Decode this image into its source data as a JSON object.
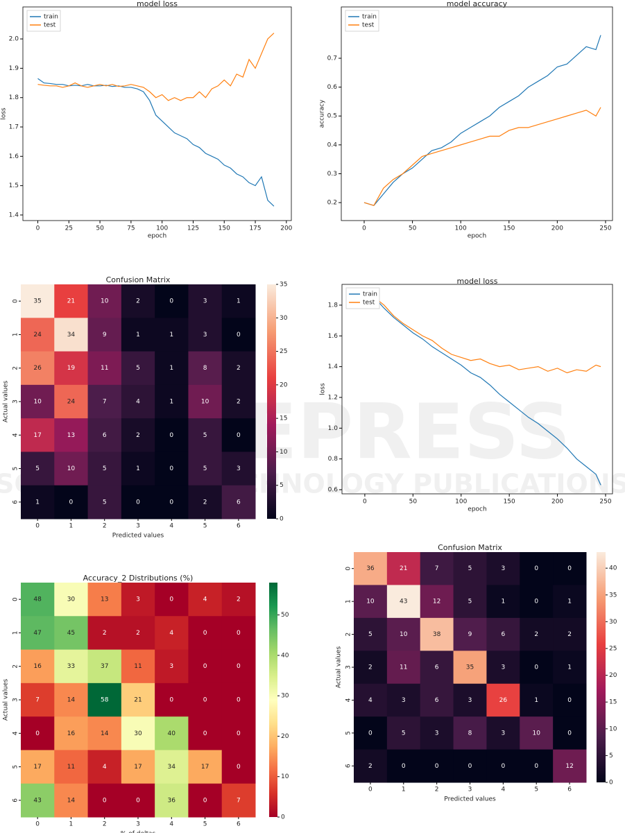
{
  "watermark": {
    "title": "SCITEPRESS",
    "subtitle": "SCIENCE AND TECHNOLOGY PUBLICATIONS"
  },
  "chart_data": [
    {
      "type": "line",
      "title": "model loss",
      "xlabel": "epoch",
      "ylabel": "loss",
      "xlim": [
        -12,
        204
      ],
      "xticks": [
        0,
        25,
        50,
        75,
        100,
        125,
        150,
        175,
        200
      ],
      "ylim": [
        1.381,
        2.109
      ],
      "yticks": [
        1.4,
        1.5,
        1.6,
        1.7,
        1.8,
        1.9,
        {
          "value": 2,
          "label": "2.0"
        }
      ],
      "legend": "upper left",
      "x": [
        0,
        5,
        10,
        15,
        20,
        25,
        30,
        35,
        40,
        45,
        50,
        55,
        60,
        65,
        70,
        75,
        80,
        85,
        90,
        95,
        100,
        105,
        110,
        115,
        120,
        125,
        130,
        135,
        140,
        145,
        150,
        155,
        160,
        165,
        170,
        175,
        180,
        185,
        190
      ],
      "series": [
        {
          "name": "train",
          "color": "#1f77b4",
          "values": [
            1.865,
            1.85,
            1.848,
            1.845,
            1.845,
            1.84,
            1.842,
            1.84,
            1.845,
            1.84,
            1.84,
            1.842,
            1.838,
            1.84,
            1.835,
            1.835,
            1.83,
            1.82,
            1.79,
            1.74,
            1.72,
            1.7,
            1.68,
            1.67,
            1.66,
            1.64,
            1.63,
            1.61,
            1.6,
            1.59,
            1.57,
            1.56,
            1.54,
            1.53,
            1.51,
            1.5,
            1.53,
            1.45,
            1.43
          ]
        },
        {
          "name": "test",
          "color": "#ff7f0e",
          "values": [
            1.845,
            1.842,
            1.84,
            1.84,
            1.835,
            1.84,
            1.85,
            1.84,
            1.835,
            1.84,
            1.845,
            1.84,
            1.845,
            1.838,
            1.84,
            1.845,
            1.84,
            1.835,
            1.82,
            1.8,
            1.81,
            1.79,
            1.8,
            1.79,
            1.8,
            1.8,
            1.82,
            1.8,
            1.83,
            1.84,
            1.86,
            1.84,
            1.88,
            1.87,
            1.93,
            1.9,
            1.95,
            2.0,
            2.02
          ]
        }
      ]
    },
    {
      "type": "line",
      "title": "model accuracy",
      "xlabel": "epoch",
      "ylabel": "accuracy",
      "xlim": [
        -23.7,
        257.2
      ],
      "xticks": [
        0,
        50,
        100,
        150,
        200,
        250
      ],
      "ylim": [
        0.1378,
        0.8778
      ],
      "yticks": [
        0.2,
        0.3,
        0.4,
        0.5,
        0.6,
        0.7
      ],
      "legend": "upper left",
      "x": [
        0,
        10,
        20,
        30,
        40,
        50,
        60,
        70,
        80,
        90,
        100,
        110,
        120,
        130,
        140,
        150,
        160,
        170,
        180,
        190,
        200,
        210,
        220,
        230,
        240,
        245
      ],
      "series": [
        {
          "name": "train",
          "color": "#1f77b4",
          "values": [
            0.2,
            0.19,
            0.23,
            0.27,
            0.3,
            0.32,
            0.35,
            0.38,
            0.39,
            0.41,
            0.44,
            0.46,
            0.48,
            0.5,
            0.53,
            0.55,
            0.57,
            0.6,
            0.62,
            0.64,
            0.67,
            0.68,
            0.71,
            0.74,
            0.73,
            0.78
          ]
        },
        {
          "name": "test",
          "color": "#ff7f0e",
          "values": [
            0.2,
            0.19,
            0.25,
            0.28,
            0.3,
            0.33,
            0.36,
            0.37,
            0.38,
            0.39,
            0.4,
            0.41,
            0.42,
            0.43,
            0.43,
            0.45,
            0.46,
            0.46,
            0.47,
            0.48,
            0.49,
            0.5,
            0.51,
            0.52,
            0.5,
            0.53
          ]
        }
      ]
    },
    {
      "type": "heatmap",
      "title": "Confusion Matrix",
      "xlabel": "Predicted values",
      "ylabel": "Actual values",
      "x_categories": [
        "0",
        "1",
        "2",
        "3",
        "4",
        "5",
        "6"
      ],
      "y_categories": [
        "0",
        "1",
        "2",
        "3",
        "4",
        "5",
        "6"
      ],
      "matrix": [
        [
          35,
          21,
          10,
          2,
          0,
          3,
          1
        ],
        [
          24,
          34,
          9,
          1,
          1,
          3,
          0
        ],
        [
          26,
          19,
          11,
          5,
          1,
          8,
          2
        ],
        [
          10,
          24,
          7,
          4,
          1,
          10,
          2
        ],
        [
          17,
          13,
          6,
          2,
          0,
          5,
          0
        ],
        [
          5,
          10,
          5,
          1,
          0,
          5,
          3
        ],
        [
          1,
          0,
          5,
          0,
          0,
          2,
          6
        ]
      ],
      "clim": [
        0,
        35
      ],
      "cticks": [
        0,
        5,
        10,
        15,
        20,
        25,
        30,
        35
      ],
      "colors": [
        "#03051a",
        "#4c1d4b",
        "#a11a5b",
        "#e83f3f",
        "#f69c73",
        "#faebdd"
      ]
    },
    {
      "type": "line",
      "title": "model loss",
      "xlabel": "epoch",
      "ylabel": "loss",
      "xlim": [
        -23.7,
        257.2
      ],
      "xticks": [
        0,
        50,
        100,
        150,
        200,
        250
      ],
      "ylim": [
        0.573,
        1.935
      ],
      "yticks": [
        0.6,
        0.8,
        {
          "value": 1,
          "label": "1.0"
        },
        1.2,
        1.4,
        1.6,
        1.8
      ],
      "legend": "upper left",
      "x": [
        0,
        10,
        20,
        30,
        40,
        50,
        60,
        70,
        80,
        90,
        100,
        110,
        120,
        130,
        140,
        150,
        160,
        170,
        180,
        190,
        200,
        210,
        220,
        230,
        240,
        245
      ],
      "series": [
        {
          "name": "train",
          "color": "#1f77b4",
          "values": [
            1.9,
            1.85,
            1.78,
            1.72,
            1.67,
            1.62,
            1.58,
            1.53,
            1.49,
            1.45,
            1.41,
            1.36,
            1.33,
            1.28,
            1.22,
            1.17,
            1.12,
            1.07,
            1.03,
            0.98,
            0.93,
            0.87,
            0.8,
            0.75,
            0.7,
            0.63
          ]
        },
        {
          "name": "test",
          "color": "#ff7f0e",
          "values": [
            1.88,
            1.85,
            1.8,
            1.73,
            1.68,
            1.64,
            1.6,
            1.57,
            1.52,
            1.48,
            1.46,
            1.44,
            1.45,
            1.42,
            1.4,
            1.41,
            1.38,
            1.39,
            1.4,
            1.37,
            1.39,
            1.36,
            1.38,
            1.37,
            1.41,
            1.4
          ]
        }
      ]
    },
    {
      "type": "heatmap",
      "title": "Accuracy_2 Distributions (%)",
      "xlabel": "% of deltas",
      "ylabel": "Actual values",
      "x_categories": [
        "0",
        "1",
        "2",
        "3",
        "4",
        "5",
        "6"
      ],
      "y_categories": [
        "0",
        "1",
        "2",
        "3",
        "4",
        "5",
        "6"
      ],
      "matrix": [
        [
          48,
          30,
          13,
          3,
          0,
          4,
          2
        ],
        [
          47,
          45,
          2,
          2,
          4,
          0,
          0
        ],
        [
          16,
          33,
          37,
          11,
          3,
          0,
          0
        ],
        [
          7,
          14,
          58,
          21,
          0,
          0,
          0
        ],
        [
          0,
          16,
          14,
          30,
          40,
          0,
          0
        ],
        [
          17,
          11,
          4,
          17,
          34,
          17,
          0
        ],
        [
          43,
          14,
          0,
          0,
          36,
          0,
          7
        ]
      ],
      "clim": [
        0,
        58
      ],
      "cticks": [
        0,
        10,
        20,
        30,
        40,
        50
      ],
      "colors": [
        "#a50026",
        "#d73027",
        "#f46d43",
        "#fdae61",
        "#fee08b",
        "#ffffbf",
        "#d9ef8b",
        "#a6d96a",
        "#66bd63",
        "#1a9850",
        "#006837"
      ]
    },
    {
      "type": "heatmap",
      "title": "Confusion Matrix",
      "xlabel": "Predicted values",
      "ylabel": "Actual values",
      "x_categories": [
        "0",
        "1",
        "2",
        "3",
        "4",
        "5",
        "6"
      ],
      "y_categories": [
        "0",
        "1",
        "2",
        "3",
        "4",
        "5",
        "6"
      ],
      "matrix": [
        [
          36,
          21,
          7,
          5,
          3,
          0,
          0
        ],
        [
          10,
          43,
          12,
          5,
          1,
          0,
          1
        ],
        [
          5,
          10,
          38,
          9,
          6,
          2,
          2
        ],
        [
          2,
          11,
          6,
          35,
          3,
          0,
          1
        ],
        [
          4,
          3,
          6,
          3,
          26,
          1,
          0
        ],
        [
          0,
          5,
          3,
          8,
          3,
          10,
          0
        ],
        [
          2,
          0,
          0,
          0,
          0,
          0,
          12
        ]
      ],
      "clim": [
        0,
        43
      ],
      "cticks": [
        0,
        5,
        10,
        15,
        20,
        25,
        30,
        35,
        40
      ],
      "colors": [
        "#03051a",
        "#4c1d4b",
        "#a11a5b",
        "#e83f3f",
        "#f69c73",
        "#faebdd"
      ]
    }
  ]
}
